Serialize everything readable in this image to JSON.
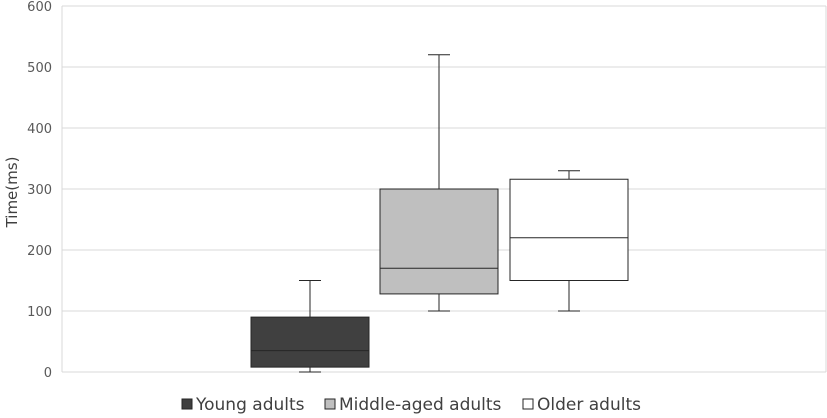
{
  "chart_data": {
    "type": "boxplot",
    "title": "",
    "xlabel": "",
    "ylabel": "Time(ms)",
    "ylim": [
      0,
      600
    ],
    "yticks": [
      0,
      100,
      200,
      300,
      400,
      500,
      600
    ],
    "grid": true,
    "legend_position": "bottom",
    "series": [
      {
        "name": "Young adults",
        "min": 0,
        "q1": 8,
        "median": 35,
        "q3": 90,
        "max": 150,
        "fill": "#404040",
        "stroke": "#262626"
      },
      {
        "name": "Middle-aged adults",
        "min": 100,
        "q1": 128,
        "median": 170,
        "q3": 300,
        "max": 520,
        "fill": "#bfbfbf",
        "stroke": "#262626"
      },
      {
        "name": "Older adults",
        "min": 100,
        "q1": 150,
        "median": 220,
        "q3": 316,
        "max": 330,
        "fill": "#ffffff",
        "stroke": "#262626"
      }
    ]
  }
}
